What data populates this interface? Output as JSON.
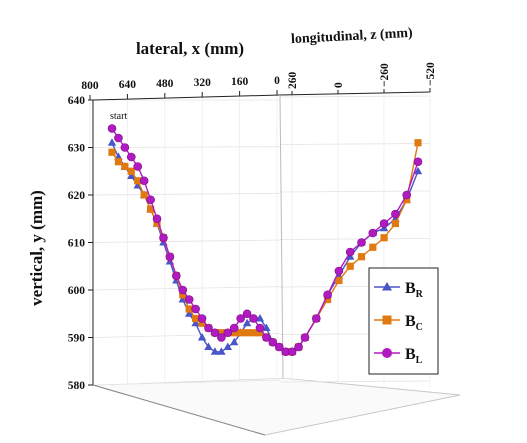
{
  "chart_data": {
    "type": "line",
    "projection": "3d",
    "annotation": "start",
    "axes": {
      "x": {
        "label": "lateral, x (mm)",
        "ticks": [
          "800",
          "640",
          "480",
          "320",
          "160",
          "0"
        ],
        "range": [
          0,
          800
        ]
      },
      "z": {
        "label": "longitudinal, z (mm)",
        "ticks": [
          "260",
          "0",
          "−260",
          "−520"
        ],
        "range": [
          -520,
          260
        ]
      },
      "y": {
        "label": "vertical, y (mm)",
        "ticks": [
          "640",
          "630",
          "620",
          "610",
          "600",
          "590",
          "580"
        ],
        "range": [
          580,
          640
        ]
      }
    },
    "grid": true,
    "legend_position": "right",
    "series": [
      {
        "name": "B_R",
        "base": "B",
        "sub": "R",
        "color": "#4a55c8",
        "marker": "triangle",
        "points": [
          [
            800,
            631
          ],
          [
            780,
            628
          ],
          [
            760,
            626
          ],
          [
            740,
            624
          ],
          [
            720,
            622
          ],
          [
            700,
            620
          ],
          [
            680,
            617
          ],
          [
            660,
            614
          ],
          [
            640,
            610
          ],
          [
            620,
            606
          ],
          [
            600,
            602
          ],
          [
            580,
            598
          ],
          [
            560,
            595
          ],
          [
            540,
            593
          ],
          [
            520,
            590
          ],
          [
            500,
            588
          ],
          [
            480,
            587
          ],
          [
            460,
            587
          ],
          [
            440,
            588
          ],
          [
            420,
            589
          ],
          [
            400,
            591
          ],
          [
            380,
            593
          ],
          [
            360,
            594
          ],
          [
            340,
            594
          ],
          [
            320,
            592
          ],
          [
            300,
            589
          ],
          [
            280,
            588
          ],
          [
            260,
            587
          ],
          [
            240,
            587
          ],
          [
            220,
            588
          ],
          [
            200,
            590
          ],
          [
            180,
            594
          ],
          [
            160,
            599
          ],
          [
            140,
            603
          ],
          [
            120,
            607
          ],
          [
            100,
            610
          ],
          [
            80,
            612
          ],
          [
            60,
            613
          ],
          [
            40,
            615
          ],
          [
            20,
            619
          ],
          [
            0,
            625
          ]
        ]
      },
      {
        "name": "B_C",
        "base": "B",
        "sub": "C",
        "color": "#e07a10",
        "marker": "square",
        "points": [
          [
            800,
            629
          ],
          [
            780,
            627
          ],
          [
            760,
            626
          ],
          [
            740,
            625
          ],
          [
            720,
            623
          ],
          [
            700,
            620
          ],
          [
            680,
            617
          ],
          [
            660,
            614
          ],
          [
            640,
            611
          ],
          [
            620,
            607
          ],
          [
            600,
            603
          ],
          [
            580,
            599
          ],
          [
            560,
            596
          ],
          [
            540,
            594
          ],
          [
            520,
            593
          ],
          [
            500,
            592
          ],
          [
            480,
            591
          ],
          [
            460,
            591
          ],
          [
            440,
            591
          ],
          [
            420,
            591
          ],
          [
            400,
            591
          ],
          [
            380,
            591
          ],
          [
            360,
            591
          ],
          [
            340,
            591
          ],
          [
            320,
            590
          ],
          [
            300,
            589
          ],
          [
            280,
            588
          ],
          [
            260,
            587
          ],
          [
            240,
            587
          ],
          [
            220,
            588
          ],
          [
            200,
            590
          ],
          [
            180,
            594
          ],
          [
            160,
            598
          ],
          [
            140,
            602
          ],
          [
            120,
            605
          ],
          [
            100,
            607
          ],
          [
            80,
            609
          ],
          [
            60,
            611
          ],
          [
            40,
            614
          ],
          [
            20,
            619
          ],
          [
            0,
            631
          ]
        ]
      },
      {
        "name": "B_L",
        "base": "B",
        "sub": "L",
        "color": "#b01ac0",
        "marker": "circle",
        "points": [
          [
            800,
            634
          ],
          [
            780,
            632
          ],
          [
            760,
            630
          ],
          [
            740,
            628
          ],
          [
            720,
            626
          ],
          [
            700,
            623
          ],
          [
            680,
            619
          ],
          [
            660,
            615
          ],
          [
            640,
            611
          ],
          [
            620,
            607
          ],
          [
            600,
            603
          ],
          [
            580,
            600
          ],
          [
            560,
            598
          ],
          [
            540,
            596
          ],
          [
            520,
            594
          ],
          [
            500,
            592
          ],
          [
            480,
            591
          ],
          [
            460,
            590
          ],
          [
            440,
            591
          ],
          [
            420,
            592
          ],
          [
            400,
            594
          ],
          [
            380,
            595
          ],
          [
            360,
            594
          ],
          [
            340,
            592
          ],
          [
            320,
            590
          ],
          [
            300,
            589
          ],
          [
            280,
            588
          ],
          [
            260,
            587
          ],
          [
            240,
            587
          ],
          [
            220,
            588
          ],
          [
            200,
            590
          ],
          [
            180,
            594
          ],
          [
            160,
            599
          ],
          [
            140,
            604
          ],
          [
            120,
            608
          ],
          [
            100,
            610
          ],
          [
            80,
            612
          ],
          [
            60,
            614
          ],
          [
            40,
            616
          ],
          [
            20,
            620
          ],
          [
            0,
            627
          ]
        ]
      }
    ]
  }
}
